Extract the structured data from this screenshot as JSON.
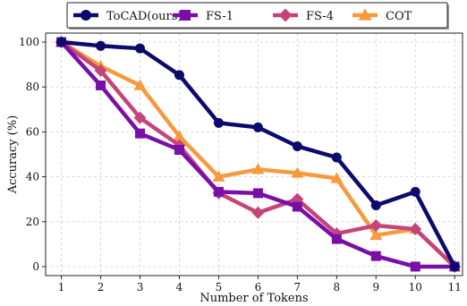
{
  "chart_data": {
    "type": "line",
    "title": "",
    "xlabel": "Number of Tokens",
    "ylabel": "Accuracy (%)",
    "x": [
      1,
      2,
      3,
      4,
      5,
      6,
      7,
      8,
      9,
      10,
      11
    ],
    "xlim": [
      0.6,
      11.2
    ],
    "ylim": [
      -4,
      104
    ],
    "yticks": [
      0,
      20,
      40,
      60,
      80,
      100
    ],
    "grid": true,
    "legend_position": "top-center",
    "series": [
      {
        "name": "ToCAD(ours)",
        "color": "#0d0a6e",
        "marker": "circle",
        "values": [
          100,
          98.3,
          97.2,
          85.3,
          64.0,
          62.0,
          53.6,
          48.6,
          27.3,
          33.3,
          0
        ]
      },
      {
        "name": "FS-1",
        "color": "#7a0fa8",
        "marker": "square",
        "values": [
          100,
          80.7,
          59.3,
          52.0,
          33.3,
          32.7,
          26.7,
          12.3,
          4.7,
          0,
          0
        ]
      },
      {
        "name": "FS-4",
        "color": "#c5457a",
        "marker": "diamond",
        "values": [
          100,
          87.3,
          66.3,
          54.0,
          32.7,
          24.0,
          30.0,
          14.7,
          18.3,
          16.7,
          0
        ]
      },
      {
        "name": "COT",
        "color": "#f79a3e",
        "marker": "triangle",
        "values": [
          100,
          89.3,
          80.7,
          58.0,
          40.0,
          43.3,
          41.7,
          39.3,
          14.0,
          16.7,
          0
        ]
      }
    ]
  }
}
